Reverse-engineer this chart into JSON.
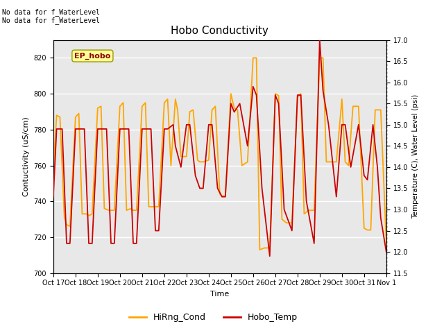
{
  "title": "Hobo Conductivity",
  "xlabel": "Time",
  "ylabel_left": "Contuctivity (uS/cm)",
  "ylabel_right": "Temperature (C), Water Level (psi)",
  "xlim_labels": [
    "Oct 17",
    "Oct 18",
    "Oct 19",
    "Oct 20",
    "Oct 21",
    "Oct 22",
    "Oct 23",
    "Oct 24",
    "Oct 25",
    "Oct 26",
    "Oct 27",
    "Oct 28",
    "Oct 29",
    "Oct 30",
    "Oct 31",
    "Nov 1"
  ],
  "ylim_left": [
    700,
    830
  ],
  "ylim_right": [
    11.5,
    17.0
  ],
  "yticks_left": [
    700,
    720,
    740,
    760,
    780,
    800,
    820
  ],
  "yticks_right": [
    11.5,
    12.0,
    12.5,
    13.0,
    13.5,
    14.0,
    14.5,
    15.0,
    15.5,
    16.0,
    16.5,
    17.0
  ],
  "annotation_text": "No data for f_WaterLevel\nNo data for f_WaterLevel",
  "legend_box_text": "EP_hobo",
  "legend_box_color": "#FFFF99",
  "legend_box_text_color": "#8B0000",
  "legend_line1_label": "HiRng_Cond",
  "legend_line1_color": "#FFA500",
  "legend_line2_label": "Hobo_Temp",
  "legend_line2_color": "#CC0000",
  "background_color": "#E8E8E8",
  "grid_color": "#FFFFFF",
  "cond_x": [
    0.0,
    0.15,
    0.3,
    0.5,
    0.6,
    0.75,
    1.0,
    1.15,
    1.3,
    1.5,
    1.6,
    1.75,
    2.0,
    2.15,
    2.3,
    2.5,
    2.6,
    2.75,
    3.0,
    3.15,
    3.3,
    3.5,
    3.6,
    3.75,
    4.0,
    4.15,
    4.3,
    4.5,
    4.6,
    4.75,
    5.0,
    5.15,
    5.3,
    5.5,
    5.6,
    5.75,
    6.0,
    6.15,
    6.3,
    6.5,
    6.6,
    6.75,
    7.0,
    7.15,
    7.3,
    7.5,
    7.6,
    7.75,
    8.0,
    8.15,
    8.3,
    8.5,
    8.75,
    9.0,
    9.15,
    9.3,
    9.5,
    9.75,
    10.0,
    10.15,
    10.3,
    10.5,
    10.75,
    11.0,
    11.15,
    11.3,
    11.5,
    11.75,
    12.0,
    12.15,
    12.3,
    12.5,
    12.75,
    13.0,
    13.15,
    13.3,
    13.5,
    13.75,
    14.0,
    14.15,
    14.3,
    14.5,
    14.75,
    15.0
  ],
  "cond_y": [
    756,
    788,
    787,
    731,
    727,
    726,
    787,
    789,
    733,
    733,
    732,
    733,
    792,
    793,
    736,
    735,
    735,
    735,
    793,
    795,
    735,
    736,
    735,
    735,
    793,
    795,
    737,
    737,
    737,
    737,
    795,
    797,
    760,
    797,
    791,
    765,
    765,
    790,
    791,
    763,
    762,
    762,
    763,
    791,
    793,
    744,
    743,
    743,
    800,
    792,
    791,
    760,
    762,
    820,
    820,
    713,
    714,
    714,
    800,
    799,
    730,
    728,
    728,
    798,
    800,
    733,
    735,
    735,
    820,
    820,
    762,
    762,
    762,
    797,
    762,
    760,
    793,
    793,
    725,
    724,
    724,
    791,
    791,
    717
  ],
  "temp_x": [
    0.0,
    0.15,
    0.4,
    0.6,
    0.75,
    1.0,
    1.15,
    1.4,
    1.6,
    1.75,
    2.0,
    2.15,
    2.4,
    2.6,
    2.75,
    3.0,
    3.15,
    3.4,
    3.6,
    3.75,
    4.0,
    4.15,
    4.4,
    4.6,
    4.75,
    5.0,
    5.15,
    5.4,
    5.5,
    5.75,
    6.0,
    6.15,
    6.4,
    6.6,
    6.75,
    7.0,
    7.15,
    7.4,
    7.6,
    7.75,
    8.0,
    8.15,
    8.4,
    8.75,
    9.0,
    9.15,
    9.4,
    9.75,
    10.0,
    10.15,
    10.4,
    10.75,
    11.0,
    11.15,
    11.4,
    11.75,
    12.0,
    12.15,
    12.4,
    12.75,
    13.0,
    13.15,
    13.4,
    13.75,
    14.0,
    14.15,
    14.4,
    14.6,
    14.75,
    15.0
  ],
  "temp_y": [
    13.3,
    14.9,
    14.9,
    12.2,
    12.2,
    14.9,
    14.9,
    14.9,
    12.2,
    12.2,
    14.9,
    14.9,
    14.9,
    12.2,
    12.2,
    14.9,
    14.9,
    14.9,
    12.2,
    12.2,
    14.9,
    14.9,
    14.9,
    12.5,
    12.5,
    14.9,
    14.9,
    15.0,
    14.5,
    14.0,
    15.0,
    15.0,
    13.8,
    13.5,
    13.5,
    15.0,
    15.0,
    13.5,
    13.3,
    13.3,
    15.5,
    15.3,
    15.5,
    14.5,
    15.9,
    15.7,
    13.5,
    11.9,
    15.7,
    15.5,
    13.0,
    12.5,
    15.7,
    15.7,
    13.2,
    12.2,
    17.0,
    15.8,
    15.0,
    13.3,
    15.0,
    15.0,
    14.0,
    15.0,
    13.8,
    13.7,
    15.0,
    14.0,
    12.8,
    12.0
  ]
}
